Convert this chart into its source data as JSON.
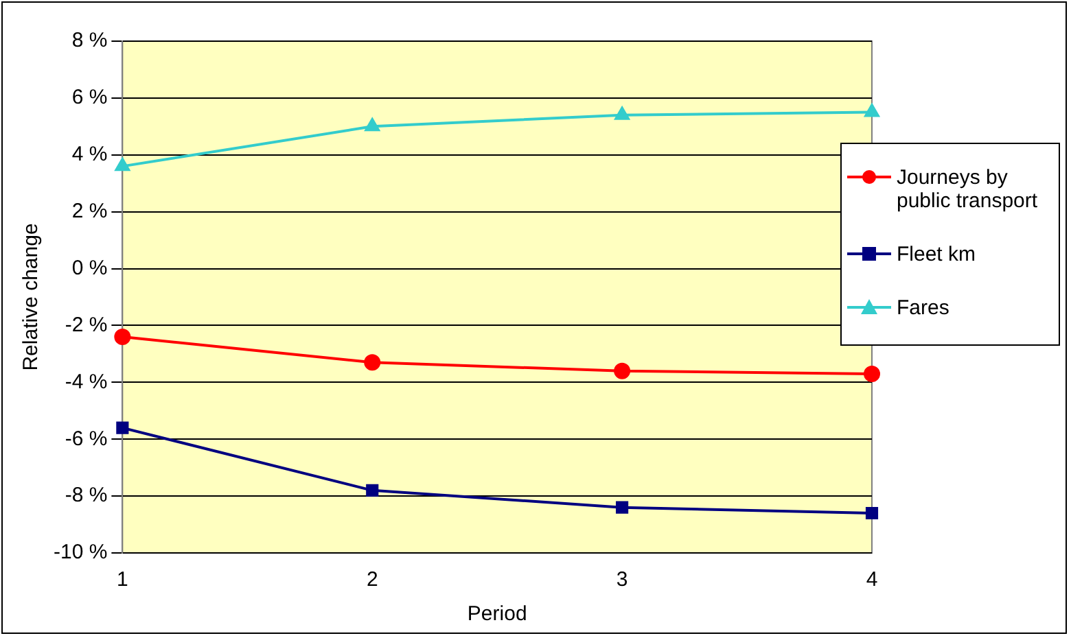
{
  "chart_data": {
    "type": "line",
    "xlabel": "Period",
    "ylabel": "Relative change",
    "categories": [
      "1",
      "2",
      "3",
      "4"
    ],
    "series": [
      {
        "name": "Journeys by public transport",
        "color": "#ff0000",
        "marker": "circle",
        "values": [
          -2.4,
          -3.3,
          -3.6,
          -3.7
        ]
      },
      {
        "name": "Fleet km",
        "color": "#000080",
        "marker": "square",
        "values": [
          -5.6,
          -7.8,
          -8.4,
          -8.6
        ]
      },
      {
        "name": "Fares",
        "color": "#33cccc",
        "marker": "triangle",
        "values": [
          3.6,
          5.0,
          5.4,
          5.5
        ]
      }
    ],
    "ylim": [
      -10,
      8
    ],
    "yticks": [
      {
        "value": -10,
        "label": "-10 %"
      },
      {
        "value": -8,
        "label": "-8 %"
      },
      {
        "value": -6,
        "label": "-6 %"
      },
      {
        "value": -4,
        "label": "-4 %"
      },
      {
        "value": -2,
        "label": "-2 %"
      },
      {
        "value": 0,
        "label": "0 %"
      },
      {
        "value": 2,
        "label": "2 %"
      },
      {
        "value": 4,
        "label": "4 %"
      },
      {
        "value": 6,
        "label": "6 %"
      },
      {
        "value": 8,
        "label": "8 %"
      }
    ],
    "grid": "y",
    "legend": "right"
  }
}
